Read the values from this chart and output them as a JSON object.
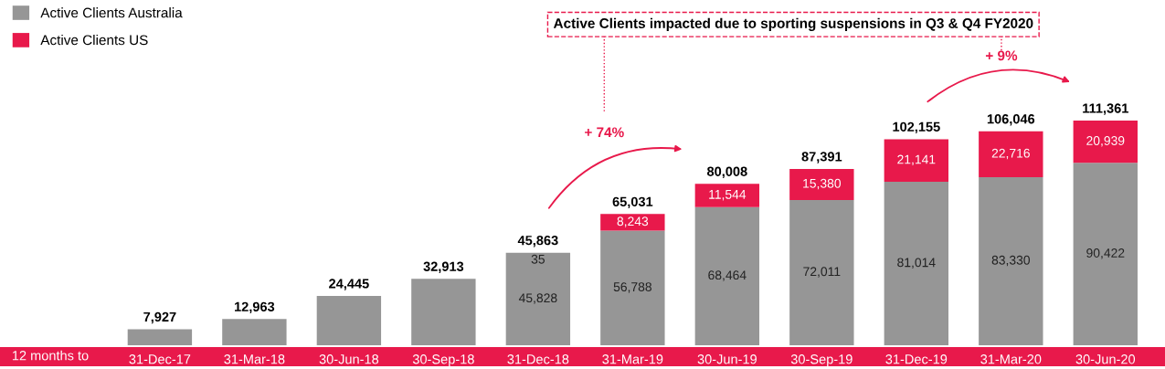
{
  "chart_data": {
    "type": "bar",
    "stacked": true,
    "xlabel": "12 months to",
    "categories": [
      "31-Dec-17",
      "31-Mar-18",
      "30-Jun-18",
      "30-Sep-18",
      "31-Dec-18",
      "31-Mar-19",
      "30-Jun-19",
      "30-Sep-19",
      "31-Dec-19",
      "31-Mar-20",
      "30-Jun-20"
    ],
    "series": [
      {
        "name": "Active Clients Australia",
        "color": "#969696",
        "values": [
          7927,
          12963,
          24445,
          32913,
          45828,
          56788,
          68464,
          72011,
          81014,
          83330,
          90422
        ],
        "value_labels": [
          null,
          null,
          null,
          null,
          "45,828",
          "56,788",
          "68,464",
          "72,011",
          "81,014",
          "83,330",
          "90,422"
        ]
      },
      {
        "name": "Active Clients US",
        "color": "#e8194b",
        "values": [
          null,
          null,
          null,
          null,
          35,
          8243,
          11544,
          15380,
          21141,
          22716,
          20939
        ],
        "value_labels": [
          null,
          null,
          null,
          null,
          "35",
          "8,243",
          "11,544",
          "15,380",
          "21,141",
          "22,716",
          "20,939"
        ]
      }
    ],
    "totals": [
      "7,927",
      "12,963",
      "24,445",
      "32,913",
      "45,863",
      "65,031",
      "80,008",
      "87,391",
      "102,155",
      "106,046",
      "111,361"
    ],
    "annotations": [
      "Active Clients impacted due to sporting suspensions in Q3 & Q4 FY2020",
      "+ 74%",
      "+ 9%"
    ],
    "legend": "top left"
  }
}
